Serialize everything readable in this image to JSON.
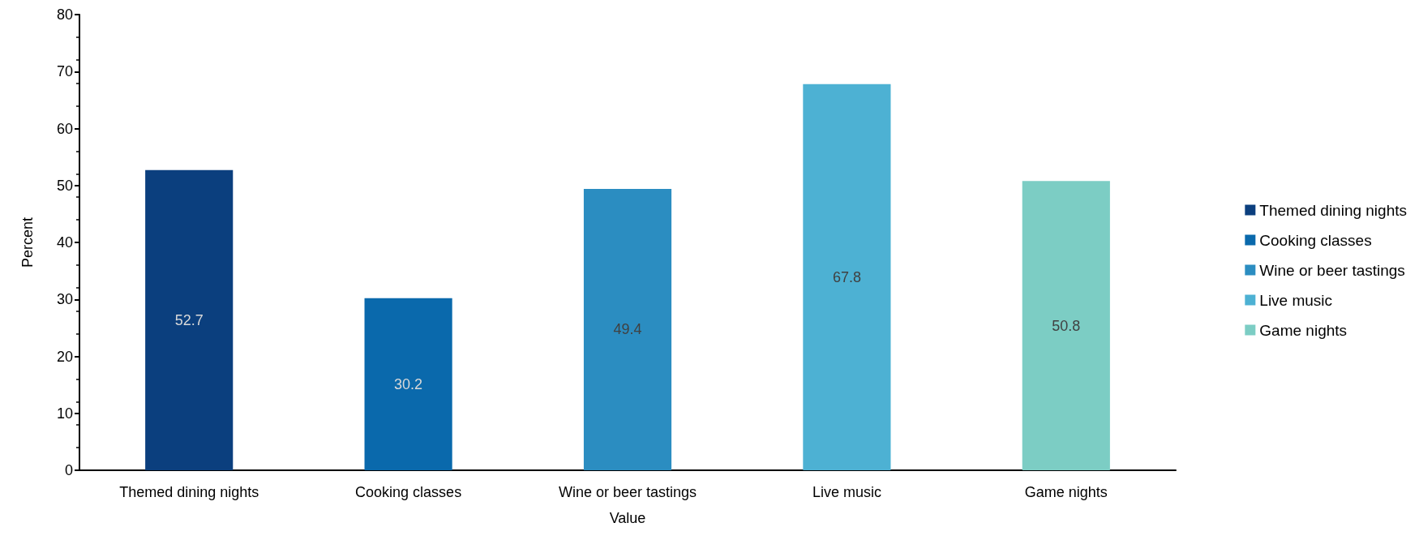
{
  "chart_data": {
    "type": "bar",
    "xlabel": "Value",
    "ylabel": "Percent",
    "categories": [
      "Themed dining nights",
      "Cooking classes",
      "Wine or beer tastings",
      "Live music",
      "Game nights"
    ],
    "series": [
      {
        "name": "Themed dining nights",
        "color": "#0b3f7e",
        "values": [
          52.7,
          null,
          null,
          null,
          null
        ]
      },
      {
        "name": "Cooking classes",
        "color": "#0a69ac",
        "values": [
          null,
          30.2,
          null,
          null,
          null
        ]
      },
      {
        "name": "Wine or beer tastings",
        "color": "#2b8dc1",
        "values": [
          null,
          null,
          49.4,
          null,
          null
        ]
      },
      {
        "name": "Live music",
        "color": "#4db1d3",
        "values": [
          null,
          null,
          null,
          67.8,
          null
        ]
      },
      {
        "name": "Game nights",
        "color": "#7ccdc4",
        "values": [
          null,
          null,
          null,
          null,
          50.8
        ]
      }
    ],
    "ylim": [
      0,
      80
    ],
    "yticks": [
      0,
      10,
      20,
      30,
      40,
      50,
      60,
      70,
      80
    ],
    "grid": false,
    "legend": "right",
    "data_labels": true
  }
}
